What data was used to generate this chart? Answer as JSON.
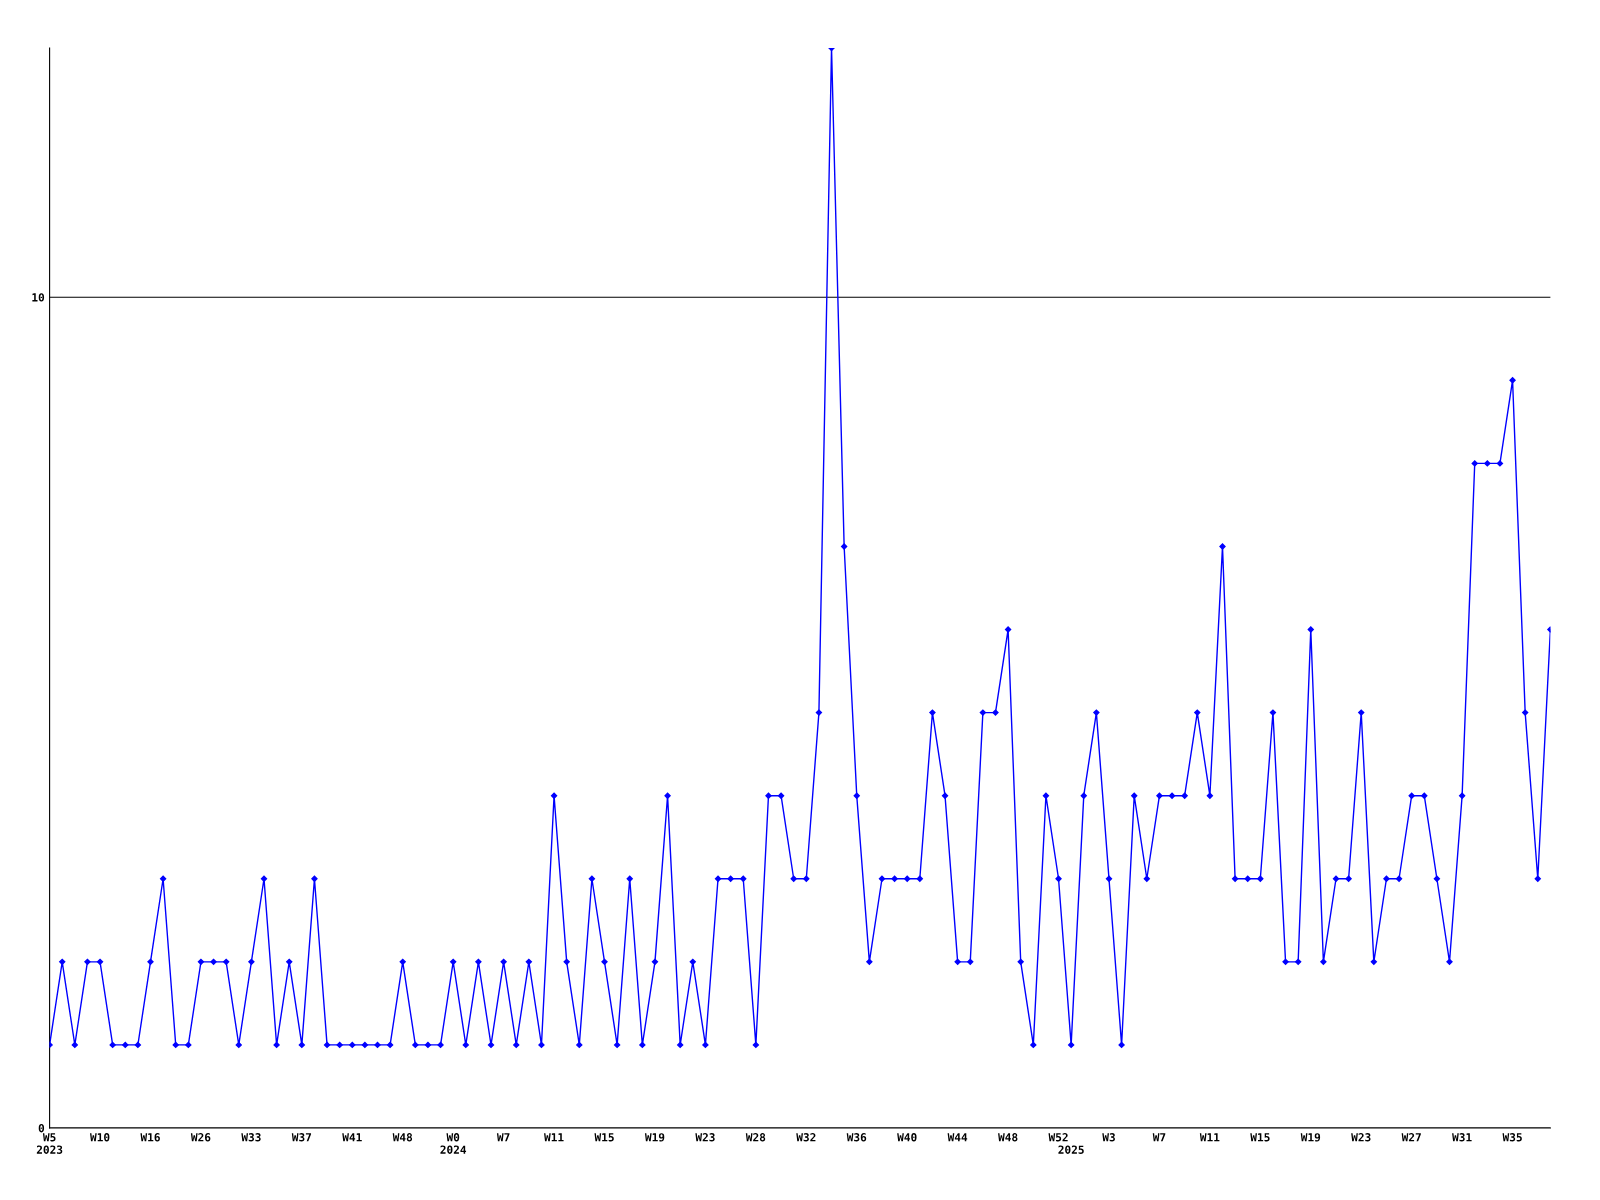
{
  "chart_data": {
    "type": "line",
    "categories": [
      "W5\n2023",
      null,
      null,
      null,
      "W10",
      null,
      null,
      null,
      "W16",
      null,
      null,
      null,
      "W26",
      null,
      null,
      null,
      "W33",
      null,
      null,
      null,
      "W37",
      null,
      null,
      null,
      "W41",
      null,
      null,
      null,
      "W48",
      null,
      null,
      null,
      "W0\n2024",
      null,
      null,
      null,
      "W7",
      null,
      null,
      null,
      "W11",
      null,
      null,
      null,
      "W15",
      null,
      null,
      null,
      "W19",
      null,
      null,
      null,
      "W23",
      null,
      null,
      null,
      "W28",
      null,
      null,
      null,
      "W32",
      null,
      null,
      null,
      "W36",
      null,
      null,
      null,
      "W40",
      null,
      null,
      null,
      "W44",
      null,
      null,
      null,
      "W48",
      null,
      null,
      null,
      "W52",
      "\n2025",
      null,
      null,
      "W3",
      null,
      null,
      null,
      "W7",
      null,
      null,
      null,
      "W11",
      null,
      null,
      null,
      "W15",
      null,
      null,
      null,
      "W19",
      null,
      null,
      null,
      "W23",
      null,
      null,
      null,
      "W27",
      null,
      null,
      null,
      "W31",
      null,
      null,
      null,
      "W35",
      null,
      null,
      null
    ],
    "series": [
      {
        "color": "#0000ff",
        "values": [
          1,
          2,
          1,
          2,
          2,
          1,
          1,
          1,
          2,
          3,
          1,
          1,
          2,
          2,
          2,
          1,
          2,
          3,
          1,
          2,
          1,
          3,
          1,
          1,
          1,
          1,
          1,
          1,
          2,
          1,
          1,
          1,
          2,
          1,
          2,
          1,
          2,
          1,
          2,
          1,
          4,
          2,
          1,
          3,
          2,
          1,
          3,
          1,
          2,
          4,
          1,
          2,
          1,
          3,
          3,
          3,
          1,
          4,
          4,
          3,
          3,
          5,
          13,
          7,
          4,
          2,
          3,
          3,
          3,
          3,
          5,
          4,
          2,
          2,
          5,
          5,
          6,
          2,
          1,
          4,
          3,
          1,
          4,
          5,
          3,
          1,
          4,
          3,
          4,
          4,
          4,
          5,
          4,
          7,
          3,
          3,
          3,
          5,
          2,
          2,
          6,
          2,
          3,
          3,
          5,
          2,
          3,
          3,
          4,
          4,
          3,
          2,
          4,
          8,
          8,
          8,
          9,
          5,
          3,
          6
        ]
      }
    ],
    "ylim": [
      0,
      13
    ],
    "yticks": [
      0,
      10
    ],
    "grid": "y",
    "marker": "diamond",
    "line_style": "solid"
  }
}
